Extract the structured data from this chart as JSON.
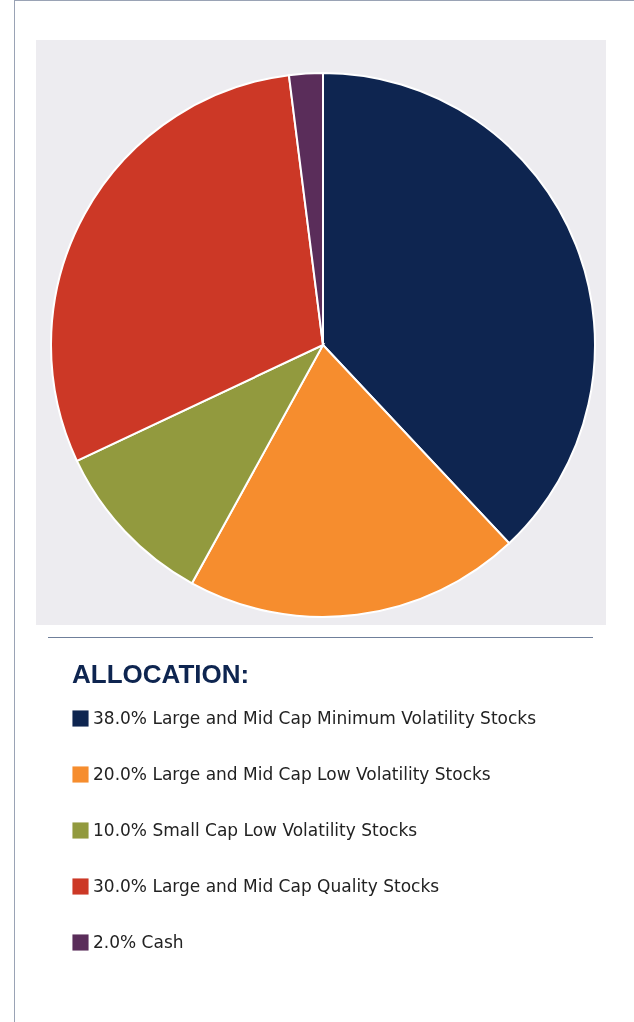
{
  "chart_data": {
    "type": "pie",
    "legend_title": "ALLOCATION:",
    "legend": "bottom",
    "categories": [
      "Large and Mid Cap Minimum Volatility Stocks",
      "Large and Mid Cap Low Volatility Stocks",
      "Small Cap Low Volatility Stocks",
      "Large and Mid Cap Quality Stocks",
      "Cash"
    ],
    "values": [
      38,
      20,
      10,
      30,
      2
    ],
    "value_labels": [
      "38.0%",
      "20.0%",
      "10.0%",
      "30.0%",
      "2.0%"
    ],
    "colors": [
      "#0e2550",
      "#f68d2e",
      "#929a3e",
      "#cc3826",
      "#5a2d5a"
    ]
  }
}
